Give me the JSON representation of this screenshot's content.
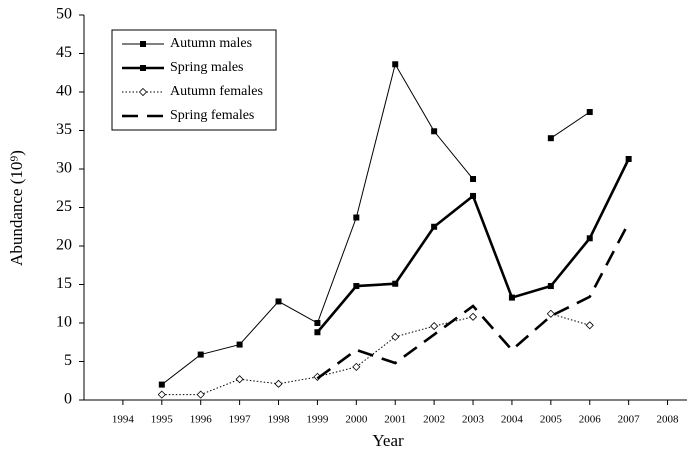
{
  "chart_data": {
    "type": "line",
    "x_label": "Year",
    "y_label": "Abundance (10⁹)",
    "x": [
      1995,
      1996,
      1997,
      1998,
      1999,
      2000,
      2001,
      2002,
      2003,
      2004,
      2005,
      2006,
      2007
    ],
    "series": [
      {
        "name": "Autumn males",
        "color": "#000000",
        "line_weight": "thin",
        "line_style": "solid",
        "marker": "square",
        "values": [
          2.0,
          5.9,
          7.2,
          12.8,
          10.0,
          23.7,
          43.6,
          34.9,
          28.7,
          null,
          34.0,
          37.4,
          null
        ]
      },
      {
        "name": "Spring males",
        "color": "#000000",
        "line_weight": "thick",
        "line_style": "solid",
        "marker": "square",
        "values": [
          null,
          null,
          null,
          null,
          8.8,
          14.8,
          15.1,
          22.5,
          26.5,
          13.3,
          14.8,
          21.0,
          31.3
        ]
      },
      {
        "name": "Autumn females",
        "color": "#000000",
        "line_weight": "thin",
        "line_style": "dotted",
        "marker": "diamond",
        "values": [
          0.7,
          0.7,
          2.7,
          2.1,
          3.0,
          4.3,
          8.2,
          9.6,
          10.8,
          null,
          11.2,
          9.7,
          null
        ]
      },
      {
        "name": "Spring females",
        "color": "#000000",
        "line_weight": "thick",
        "line_style": "dashed",
        "marker": "none",
        "values": [
          null,
          null,
          null,
          null,
          2.8,
          6.5,
          4.8,
          8.5,
          12.2,
          6.5,
          10.9,
          13.4,
          23.0
        ]
      }
    ],
    "xlim": [
      1993,
      2008.5
    ],
    "xticks": [
      1994,
      1995,
      1996,
      1997,
      1998,
      1999,
      2000,
      2001,
      2002,
      2003,
      2004,
      2005,
      2006,
      2007,
      2008
    ],
    "ylim": [
      0,
      50
    ],
    "yticks": [
      0,
      5,
      10,
      15,
      20,
      25,
      30,
      35,
      40,
      45,
      50
    ],
    "grid": false,
    "legend_position": "upper-left"
  }
}
